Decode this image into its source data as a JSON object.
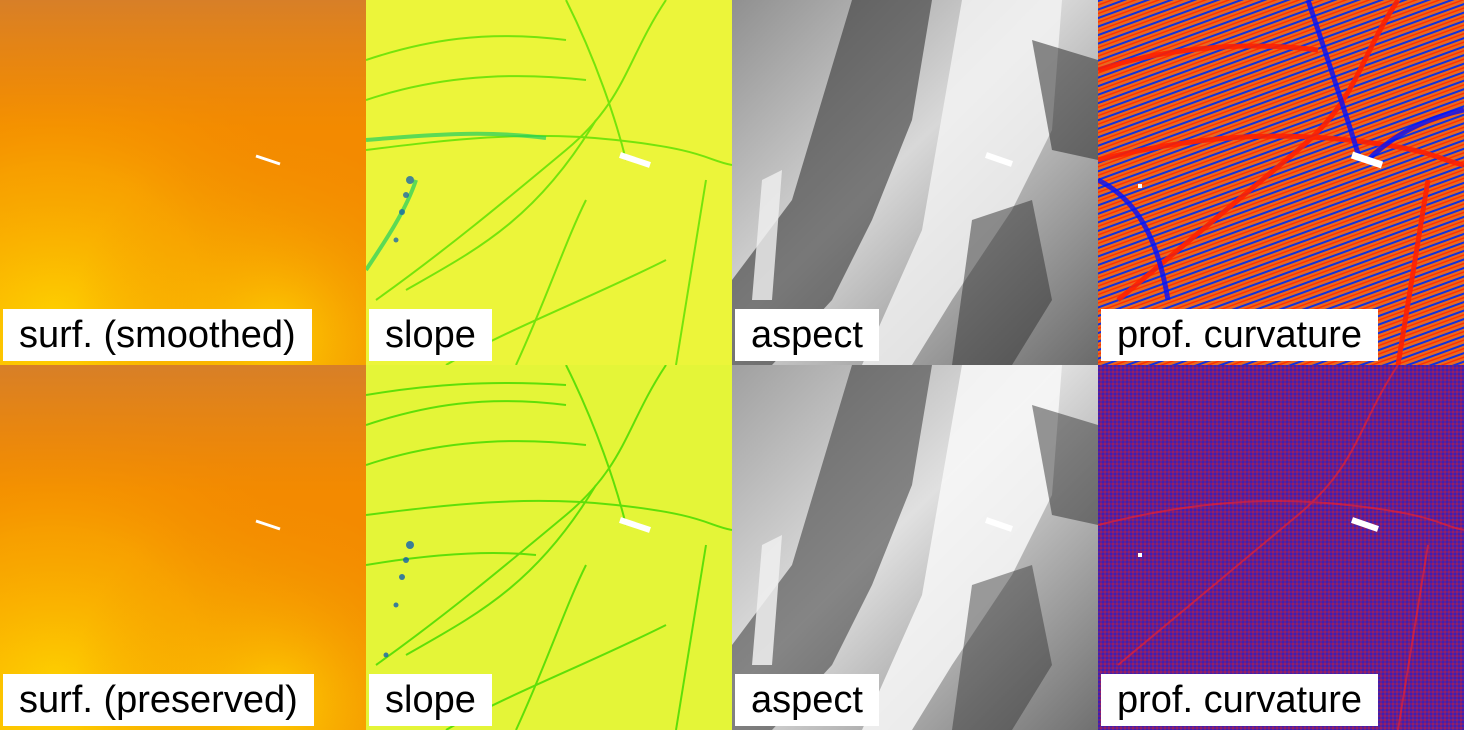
{
  "rows": [
    {
      "panels": [
        {
          "label": "surf. (smoothed)"
        },
        {
          "label": "slope"
        },
        {
          "label": "aspect"
        },
        {
          "label": "prof. curvature"
        }
      ]
    },
    {
      "panels": [
        {
          "label": "surf. (preserved)"
        },
        {
          "label": "slope"
        },
        {
          "label": "aspect"
        },
        {
          "label": "prof. curvature"
        }
      ]
    }
  ],
  "colors": {
    "surface_high": "#d77f28",
    "surface_mid": "#f38a00",
    "surface_low": "#ffd800",
    "slope_bg": "#ecf53a",
    "slope_line": "#40e000",
    "slope_dark": "#1060b0",
    "aspect_dark": "#202020",
    "aspect_light": "#f4f4f4",
    "curv_red": "#ff3000",
    "curv_blue": "#0020ff",
    "curv_purple": "#6a1f8a"
  }
}
